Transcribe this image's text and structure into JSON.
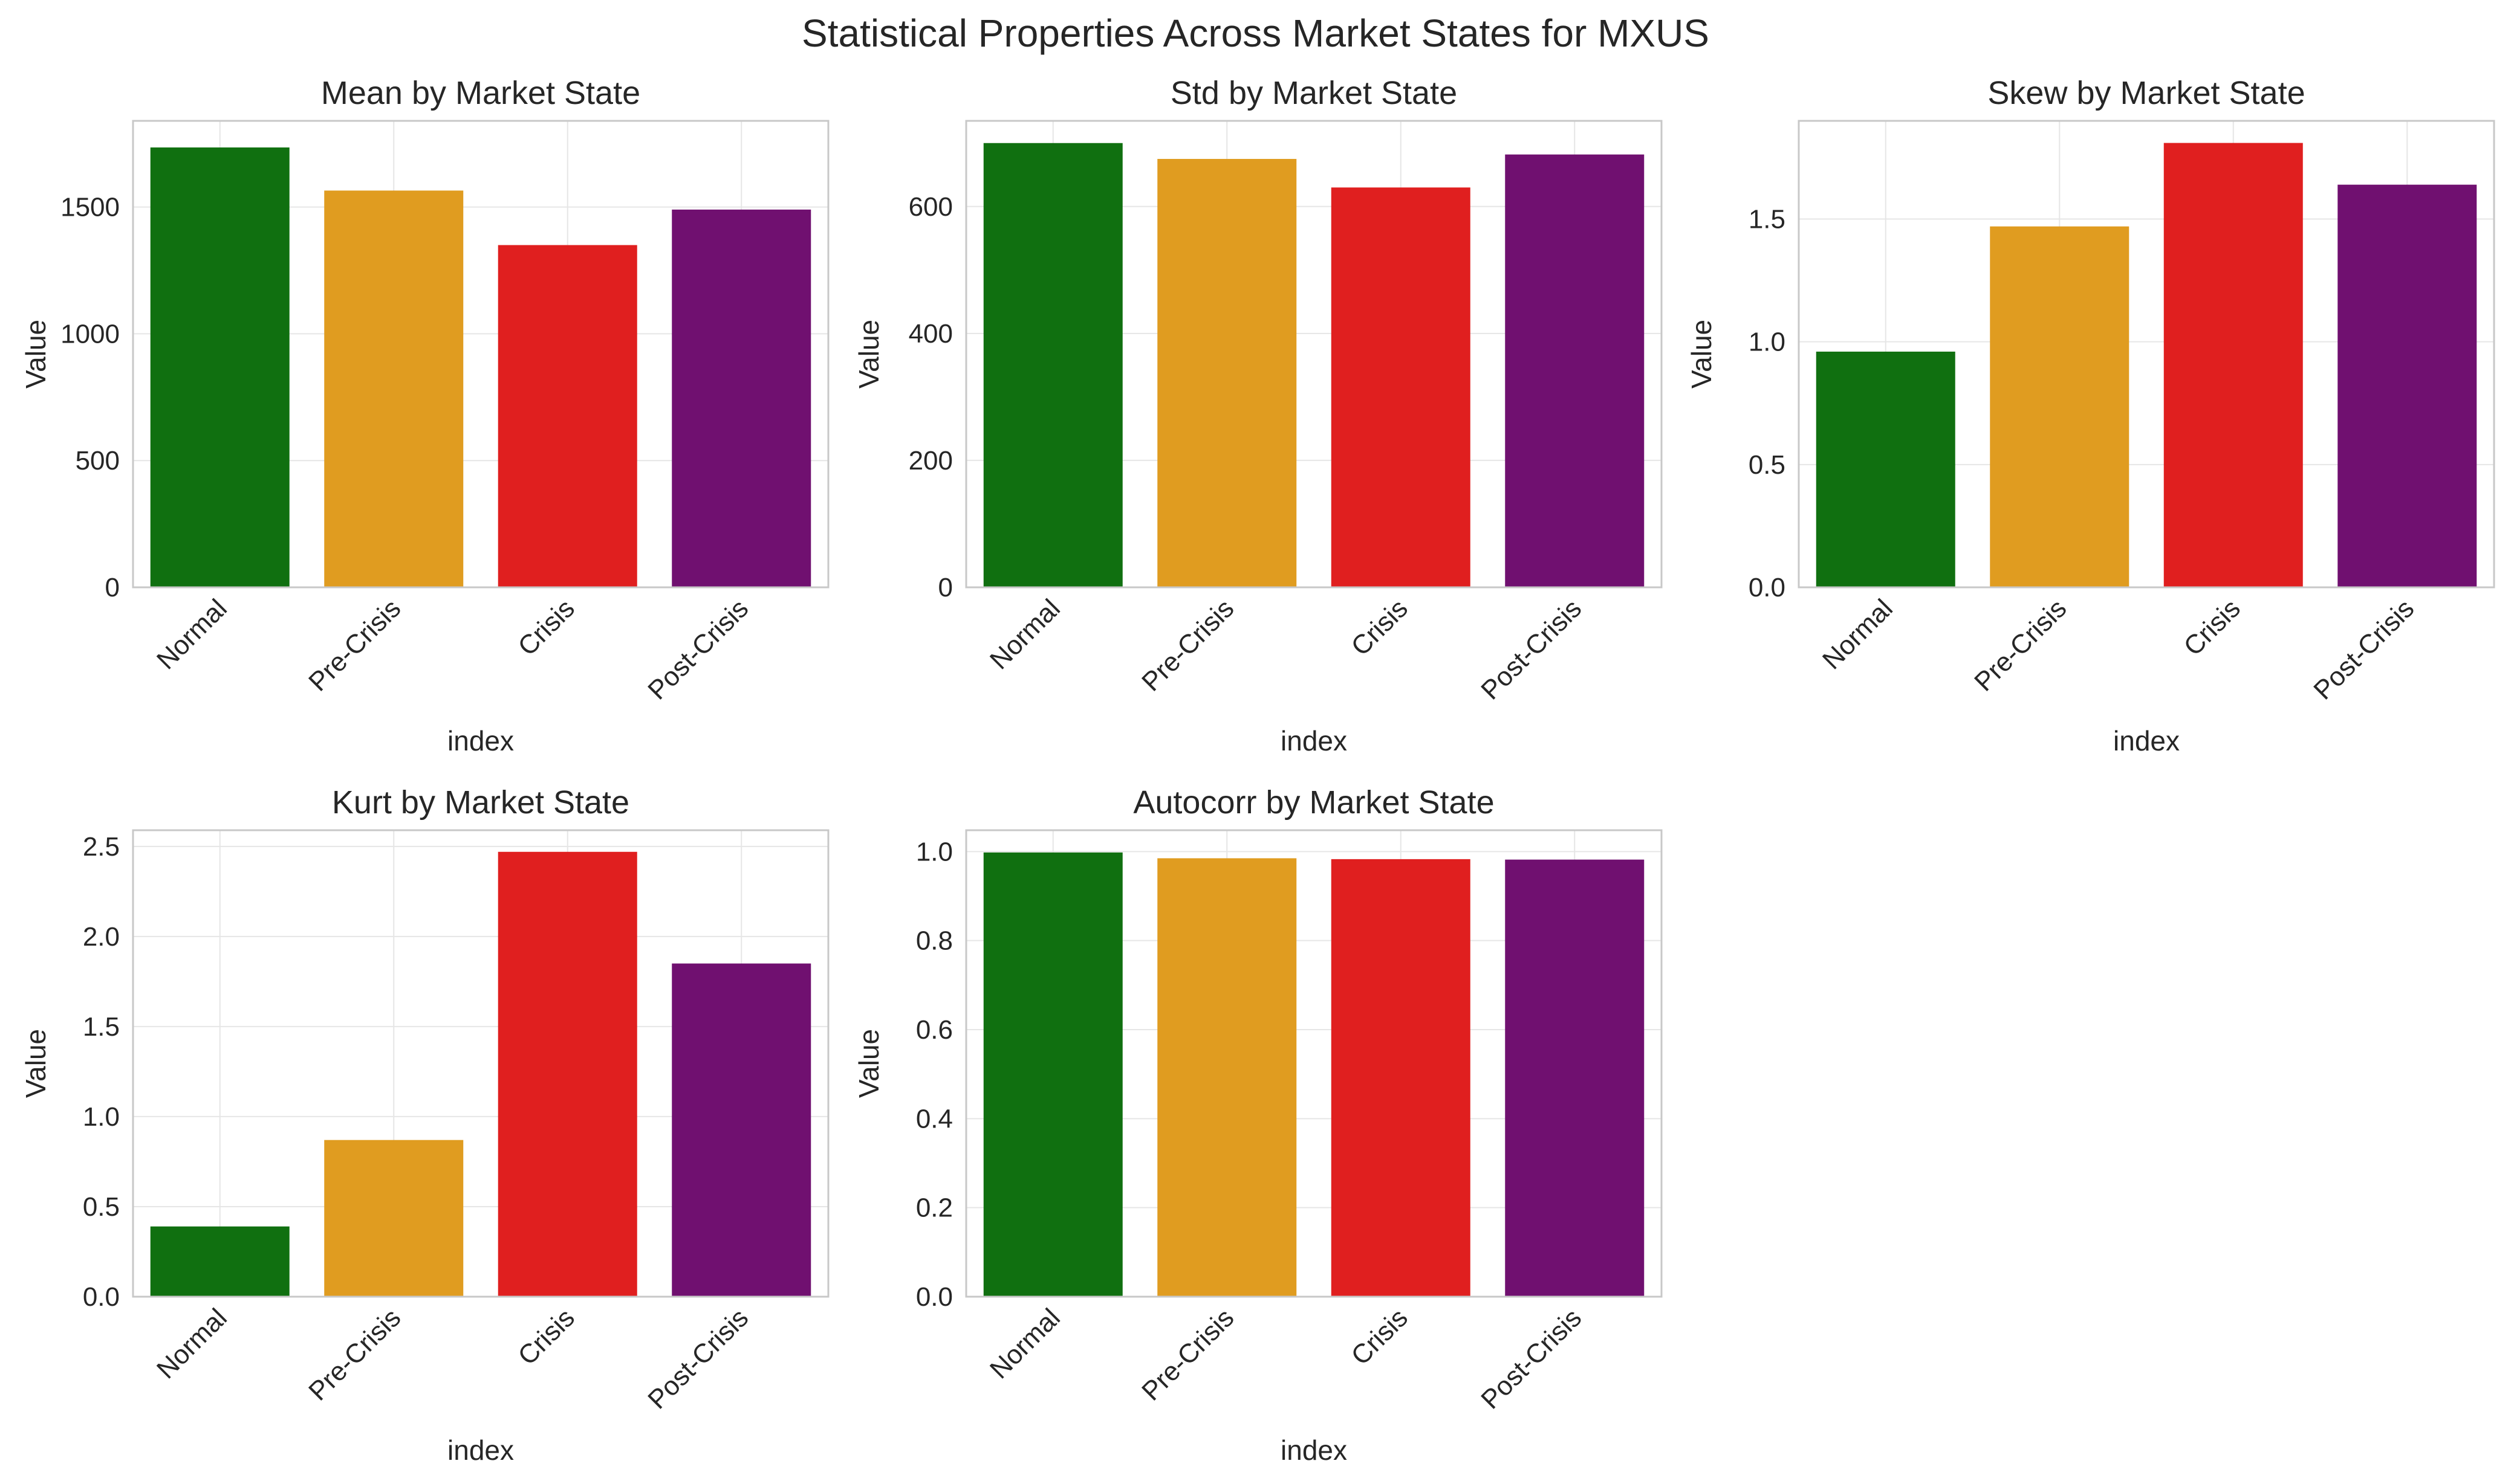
{
  "figure_title": "Statistical Properties Across Market States for MXUS",
  "style": {
    "bar_colors": [
      "#107010",
      "#e09c20",
      "#e01f1f",
      "#701070"
    ],
    "grid_color": "#e6e6e6",
    "spine_color": "#c8c8c8",
    "text_color": "#262626"
  },
  "chart_data": [
    {
      "type": "bar",
      "title": "Mean by Market State",
      "xlabel": "index",
      "ylabel": "Value",
      "categories": [
        "Normal",
        "Pre-Crisis",
        "Crisis",
        "Post-Crisis"
      ],
      "values": [
        1735,
        1565,
        1350,
        1490
      ],
      "ylim": [
        0,
        1840
      ],
      "yticks": [
        0,
        500,
        1000,
        1500
      ],
      "tick_labels": [
        "0",
        "500",
        "1000",
        "1500"
      ],
      "grid": true
    },
    {
      "type": "bar",
      "title": "Std by Market State",
      "xlabel": "index",
      "ylabel": "Value",
      "categories": [
        "Normal",
        "Pre-Crisis",
        "Crisis",
        "Post-Crisis"
      ],
      "values": [
        700,
        675,
        630,
        682
      ],
      "ylim": [
        0,
        735
      ],
      "yticks": [
        0,
        200,
        400,
        600
      ],
      "tick_labels": [
        "0",
        "200",
        "400",
        "600"
      ],
      "grid": true
    },
    {
      "type": "bar",
      "title": "Skew by Market State",
      "xlabel": "index",
      "ylabel": "Value",
      "categories": [
        "Normal",
        "Pre-Crisis",
        "Crisis",
        "Post-Crisis"
      ],
      "values": [
        0.96,
        1.47,
        1.81,
        1.64
      ],
      "ylim": [
        0,
        1.9
      ],
      "yticks": [
        0,
        0.5,
        1.0,
        1.5
      ],
      "tick_labels": [
        "0.0",
        "0.5",
        "1.0",
        "1.5"
      ],
      "grid": true
    },
    {
      "type": "bar",
      "title": "Kurt by Market State",
      "xlabel": "index",
      "ylabel": "Value",
      "categories": [
        "Normal",
        "Pre-Crisis",
        "Crisis",
        "Post-Crisis"
      ],
      "values": [
        0.39,
        0.87,
        2.47,
        1.85
      ],
      "ylim": [
        0,
        2.59
      ],
      "yticks": [
        0,
        0.5,
        1.0,
        1.5,
        2.0,
        2.5
      ],
      "tick_labels": [
        "0.0",
        "0.5",
        "1.0",
        "1.5",
        "2.0",
        "2.5"
      ],
      "grid": true
    },
    {
      "type": "bar",
      "title": "Autocorr by Market State",
      "xlabel": "index",
      "ylabel": "Value",
      "categories": [
        "Normal",
        "Pre-Crisis",
        "Crisis",
        "Post-Crisis"
      ],
      "values": [
        0.998,
        0.985,
        0.983,
        0.982
      ],
      "ylim": [
        0,
        1.048
      ],
      "yticks": [
        0,
        0.2,
        0.4,
        0.6,
        0.8,
        1.0
      ],
      "tick_labels": [
        "0.0",
        "0.2",
        "0.4",
        "0.6",
        "0.8",
        "1.0"
      ],
      "grid": true
    }
  ]
}
